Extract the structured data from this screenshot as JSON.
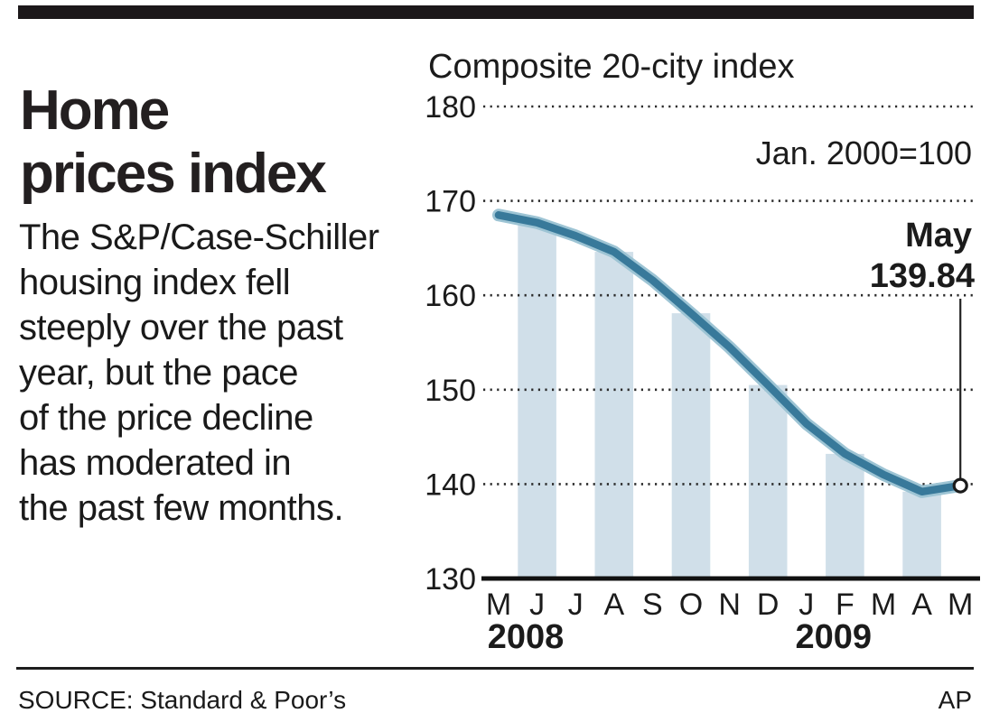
{
  "header": {
    "title_lines": [
      "Home",
      "prices index"
    ]
  },
  "description_lines": [
    "The S&P/Case-Schiller",
    "housing index fell",
    "steeply over the past",
    "year, but the pace",
    "of the price decline",
    "has moderated in",
    "the past few months."
  ],
  "chart_data": {
    "type": "line",
    "title": "Composite 20-city index",
    "note": "Jan. 2000=100",
    "xlabel": "",
    "ylabel": "",
    "x": [
      "M",
      "J",
      "J",
      "A",
      "S",
      "O",
      "N",
      "D",
      "J",
      "F",
      "M",
      "A",
      "M"
    ],
    "x_years": [
      {
        "label": "2008",
        "month_index": 0
      },
      {
        "label": "2009",
        "month_index": 8
      }
    ],
    "values": [
      168.5,
      167.7,
      166.3,
      164.6,
      161.6,
      158.1,
      154.5,
      150.5,
      146.4,
      143.2,
      141.0,
      139.2,
      139.84
    ],
    "ylim": [
      130,
      180
    ],
    "yticks": [
      180,
      170,
      160,
      150,
      140,
      130
    ],
    "grid": "dotted horizontal",
    "legend": "none",
    "shaded_month_indices": [
      1,
      3,
      5,
      7,
      9,
      11
    ],
    "annotation": {
      "label": "May",
      "value": "139.84"
    },
    "line_color": "#38799a",
    "line_halo_color": "#9dc4d4",
    "band_color": "#d0dfe9",
    "text_color": "#1b1b1b"
  },
  "footer": {
    "source": "SOURCE: Standard & Poor’s",
    "credit": "AP"
  }
}
